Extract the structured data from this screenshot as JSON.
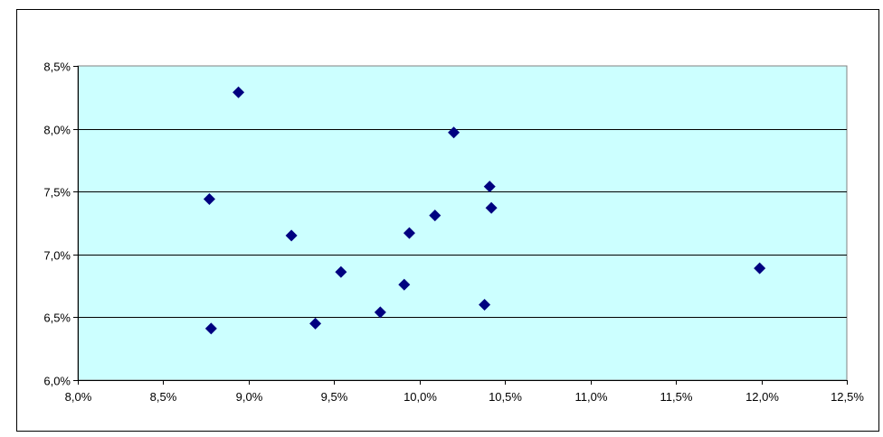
{
  "colors": {
    "plot_background": "#ccffff",
    "marker": "#000080",
    "gridline": "#000000",
    "frame": "#000000"
  },
  "chart_data": {
    "type": "scatter",
    "title": "",
    "xlabel": "",
    "ylabel": "",
    "xlim": [
      8.0,
      12.5
    ],
    "ylim": [
      6.0,
      8.5
    ],
    "x_ticks": [
      "8,0%",
      "8,5%",
      "9,0%",
      "9,5%",
      "10,0%",
      "10,5%",
      "11,0%",
      "11,5%",
      "12,0%",
      "12,5%"
    ],
    "y_ticks": [
      "6,0%",
      "6,5%",
      "7,0%",
      "7,5%",
      "8,0%",
      "8,5%"
    ],
    "grid": "horizontal major gridlines",
    "legend": "none",
    "marker": "diamond",
    "points": [
      {
        "x": 8.94,
        "y": 8.29
      },
      {
        "x": 10.2,
        "y": 7.97
      },
      {
        "x": 8.77,
        "y": 7.44
      },
      {
        "x": 10.41,
        "y": 7.54
      },
      {
        "x": 10.42,
        "y": 7.37
      },
      {
        "x": 10.09,
        "y": 7.31
      },
      {
        "x": 9.25,
        "y": 7.15
      },
      {
        "x": 9.94,
        "y": 7.17
      },
      {
        "x": 9.54,
        "y": 6.86
      },
      {
        "x": 11.99,
        "y": 6.89
      },
      {
        "x": 9.91,
        "y": 6.76
      },
      {
        "x": 10.38,
        "y": 6.6
      },
      {
        "x": 9.77,
        "y": 6.54
      },
      {
        "x": 9.39,
        "y": 6.45
      },
      {
        "x": 8.78,
        "y": 6.41
      }
    ]
  }
}
